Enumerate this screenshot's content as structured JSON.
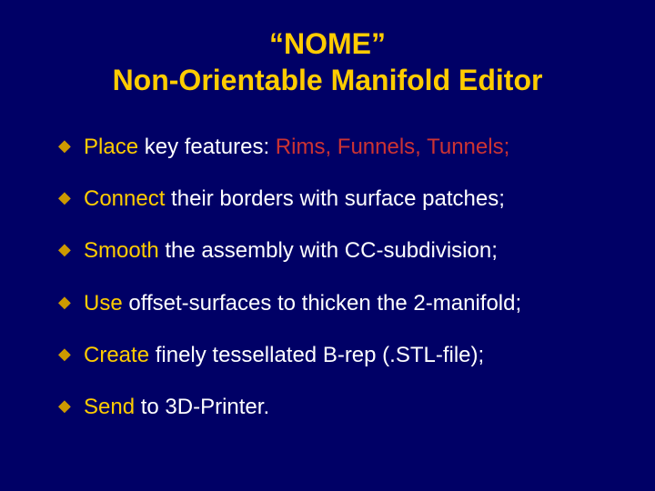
{
  "background_color": "#000066",
  "title_color": "#ffcc00",
  "verb_color": "#ffcc00",
  "rest_color": "#ffffff",
  "emph_color": "#cc3333",
  "bullet_marker_color": "#cc9900",
  "title_fontsize": 32,
  "bullet_fontsize": 24,
  "title_line1": "“NOME”",
  "title_line2": "Non-Orientable Manifold Editor",
  "bullets": [
    {
      "verb": "Place",
      "rest": " key features:  ",
      "emph": "Rims, Funnels, Tunnels;"
    },
    {
      "verb": "Connect",
      "rest": " their borders with surface patches;",
      "emph": ""
    },
    {
      "verb": "Smooth",
      "rest": " the assembly with CC-subdivision;",
      "emph": ""
    },
    {
      "verb": "Use",
      "rest": " offset-surfaces to thicken the 2-manifold;",
      "emph": ""
    },
    {
      "verb": "Create",
      "rest": " finely tessellated B-rep (.STL-file);",
      "emph": ""
    },
    {
      "verb": "Send",
      "rest": " to 3D-Printer.",
      "emph": ""
    }
  ]
}
